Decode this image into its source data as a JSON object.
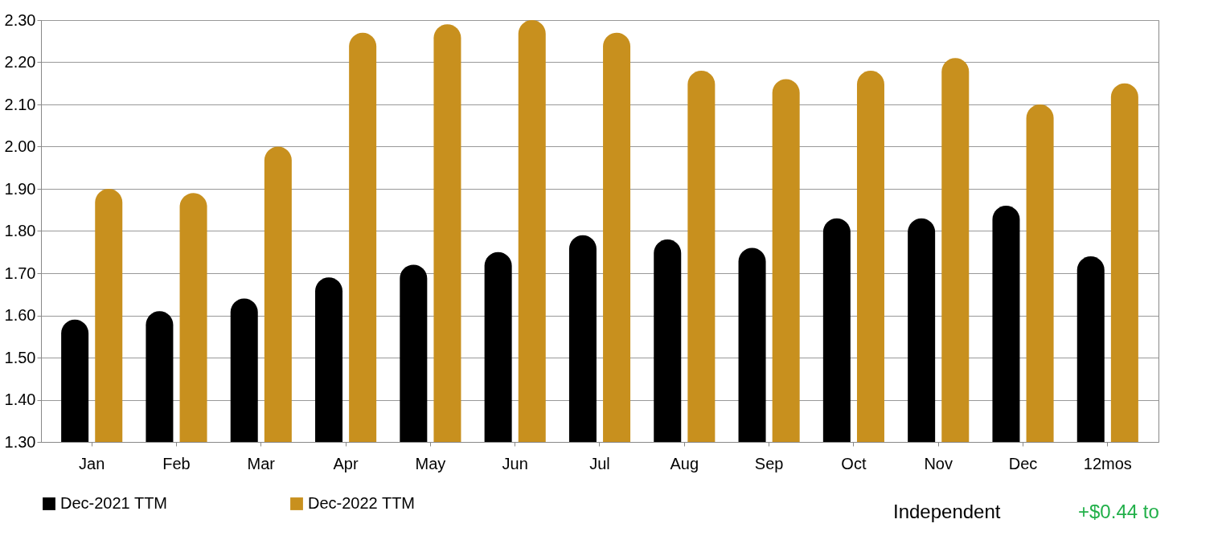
{
  "chart_data": {
    "type": "bar",
    "categories": [
      "Jan",
      "Feb",
      "Mar",
      "Apr",
      "May",
      "Jun",
      "Jul",
      "Aug",
      "Sep",
      "Oct",
      "Nov",
      "Dec",
      "12mos"
    ],
    "series": [
      {
        "name": "Dec-2021 TTM",
        "color": "#000000",
        "values": [
          1.59,
          1.61,
          1.64,
          1.69,
          1.72,
          1.75,
          1.79,
          1.78,
          1.76,
          1.83,
          1.83,
          1.86,
          1.74
        ]
      },
      {
        "name": "Dec-2022 TTM",
        "color": "#c8901e",
        "values": [
          1.9,
          1.89,
          2.0,
          2.27,
          2.29,
          2.3,
          2.27,
          2.18,
          2.16,
          2.18,
          2.21,
          2.1,
          2.15
        ]
      }
    ],
    "ylim": [
      1.3,
      2.3
    ],
    "yticks": [
      {
        "value": 1.3,
        "label": "1.30"
      },
      {
        "value": 1.4,
        "label": "1.40"
      },
      {
        "value": 1.5,
        "label": "1.50"
      },
      {
        "value": 1.6,
        "label": "1.60"
      },
      {
        "value": 1.7,
        "label": "1.70"
      },
      {
        "value": 1.8,
        "label": "1.80"
      },
      {
        "value": 1.9,
        "label": "1.90"
      },
      {
        "value": 2.0,
        "label": "2.00"
      },
      {
        "value": 2.1,
        "label": "2.10"
      },
      {
        "value": 2.2,
        "label": "2.20"
      },
      {
        "value": 2.3,
        "label": "2.30"
      }
    ],
    "grid": "y",
    "legend": "bottom",
    "annotations": [
      "Independent",
      "+$0.44 to"
    ]
  }
}
